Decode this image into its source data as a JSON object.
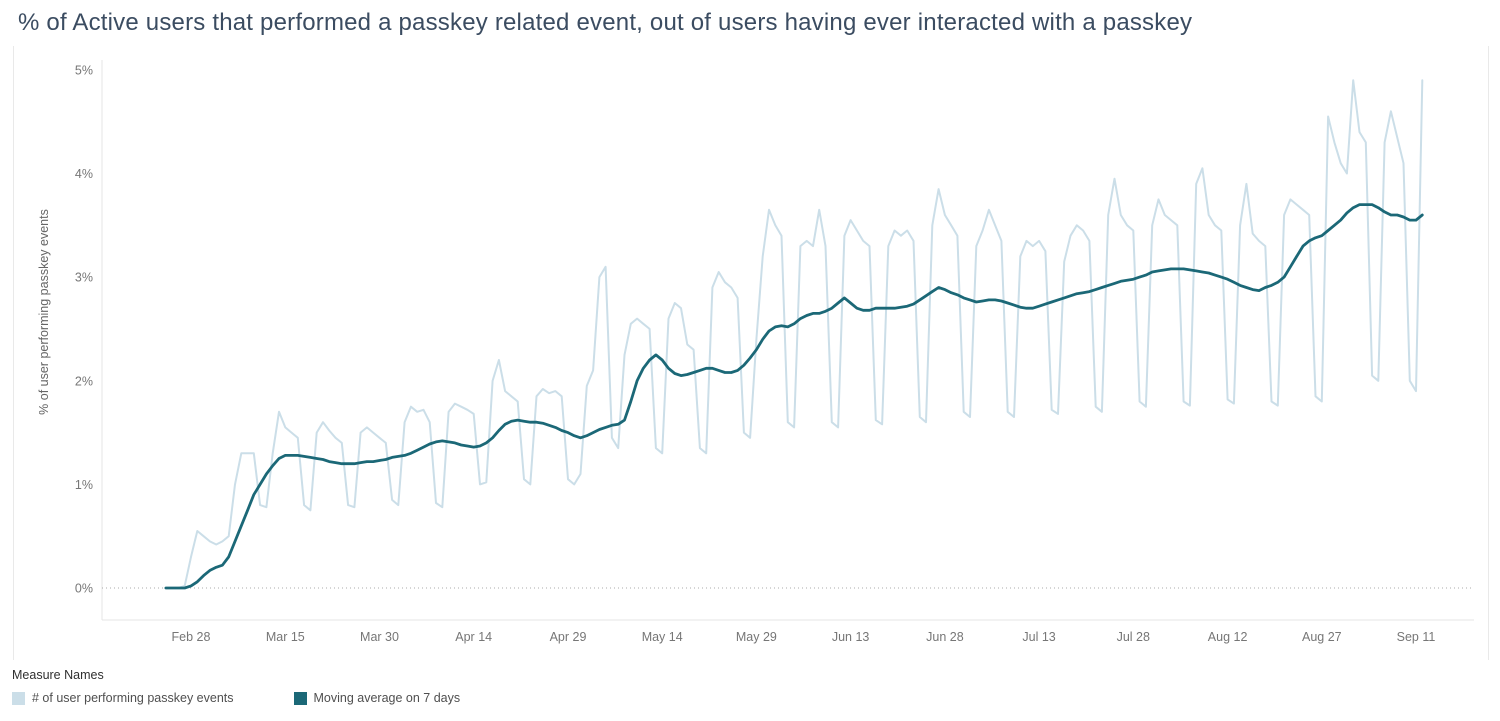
{
  "legend": {
    "title": "Measure Names"
  },
  "colors": {
    "daily_series": "#cbdee8",
    "moving_average": "#1b6877",
    "title_text": "#3b4c61",
    "axis_text": "#767676",
    "zero_line": "#ababab"
  },
  "chart_data": {
    "type": "line",
    "title": "% of Active users that performed a passkey related event, out of users having ever interacted with a passkey",
    "xlabel": "",
    "ylabel": "% of user performing passkey events",
    "ylim": [
      0,
      5
    ],
    "y_ticks": [
      "0%",
      "1%",
      "2%",
      "3%",
      "4%",
      "5%"
    ],
    "grid": "dotted-zero-line-only",
    "legend_position": "bottom-left",
    "x_tick_labels": [
      "Feb 28",
      "Mar 15",
      "Mar 30",
      "Apr 14",
      "Apr 29",
      "May 14",
      "May 29",
      "Jun 13",
      "Jun 28",
      "Jul 13",
      "Jul 28",
      "Aug 12",
      "Aug 27",
      "Sep 11"
    ],
    "x_tick_indices": [
      4,
      19,
      34,
      49,
      64,
      79,
      94,
      109,
      124,
      139,
      154,
      169,
      184,
      199
    ],
    "dates": [
      "Feb 24",
      "Feb 25",
      "Feb 26",
      "Feb 27",
      "Feb 28",
      "Mar 1",
      "Mar 2",
      "Mar 3",
      "Mar 4",
      "Mar 5",
      "Mar 6",
      "Mar 7",
      "Mar 8",
      "Mar 9",
      "Mar 10",
      "Mar 11",
      "Mar 12",
      "Mar 13",
      "Mar 14",
      "Mar 15",
      "Mar 16",
      "Mar 17",
      "Mar 18",
      "Mar 19",
      "Mar 20",
      "Mar 21",
      "Mar 22",
      "Mar 23",
      "Mar 24",
      "Mar 25",
      "Mar 26",
      "Mar 27",
      "Mar 28",
      "Mar 29",
      "Mar 30",
      "Mar 31",
      "Apr 1",
      "Apr 2",
      "Apr 3",
      "Apr 4",
      "Apr 5",
      "Apr 6",
      "Apr 7",
      "Apr 8",
      "Apr 9",
      "Apr 10",
      "Apr 11",
      "Apr 12",
      "Apr 13",
      "Apr 14",
      "Apr 15",
      "Apr 16",
      "Apr 17",
      "Apr 18",
      "Apr 19",
      "Apr 20",
      "Apr 21",
      "Apr 22",
      "Apr 23",
      "Apr 24",
      "Apr 25",
      "Apr 26",
      "Apr 27",
      "Apr 28",
      "Apr 29",
      "Apr 30",
      "May 1",
      "May 2",
      "May 3",
      "May 4",
      "May 5",
      "May 6",
      "May 7",
      "May 8",
      "May 9",
      "May 10",
      "May 11",
      "May 12",
      "May 13",
      "May 14",
      "May 15",
      "May 16",
      "May 17",
      "May 18",
      "May 19",
      "May 20",
      "May 21",
      "May 22",
      "May 23",
      "May 24",
      "May 25",
      "May 26",
      "May 27",
      "May 28",
      "May 29",
      "May 30",
      "May 31",
      "Jun 1",
      "Jun 2",
      "Jun 3",
      "Jun 4",
      "Jun 5",
      "Jun 6",
      "Jun 7",
      "Jun 8",
      "Jun 9",
      "Jun 10",
      "Jun 11",
      "Jun 12",
      "Jun 13",
      "Jun 14",
      "Jun 15",
      "Jun 16",
      "Jun 17",
      "Jun 18",
      "Jun 19",
      "Jun 20",
      "Jun 21",
      "Jun 22",
      "Jun 23",
      "Jun 24",
      "Jun 25",
      "Jun 26",
      "Jun 27",
      "Jun 28",
      "Jun 29",
      "Jun 30",
      "Jul 1",
      "Jul 2",
      "Jul 3",
      "Jul 4",
      "Jul 5",
      "Jul 6",
      "Jul 7",
      "Jul 8",
      "Jul 9",
      "Jul 10",
      "Jul 11",
      "Jul 12",
      "Jul 13",
      "Jul 14",
      "Jul 15",
      "Jul 16",
      "Jul 17",
      "Jul 18",
      "Jul 19",
      "Jul 20",
      "Jul 21",
      "Jul 22",
      "Jul 23",
      "Jul 24",
      "Jul 25",
      "Jul 26",
      "Jul 27",
      "Jul 28",
      "Jul 29",
      "Jul 30",
      "Jul 31",
      "Aug 1",
      "Aug 2",
      "Aug 3",
      "Aug 4",
      "Aug 5",
      "Aug 6",
      "Aug 7",
      "Aug 8",
      "Aug 9",
      "Aug 10",
      "Aug 11",
      "Aug 12",
      "Aug 13",
      "Aug 14",
      "Aug 15",
      "Aug 16",
      "Aug 17",
      "Aug 18",
      "Aug 19",
      "Aug 20",
      "Aug 21",
      "Aug 22",
      "Aug 23",
      "Aug 24",
      "Aug 25",
      "Aug 26",
      "Aug 27",
      "Aug 28",
      "Aug 29",
      "Aug 30",
      "Aug 31",
      "Sep 1",
      "Sep 2",
      "Sep 3",
      "Sep 4",
      "Sep 5",
      "Sep 6",
      "Sep 7",
      "Sep 8",
      "Sep 9",
      "Sep 10",
      "Sep 11",
      "Sep 12"
    ],
    "series": [
      {
        "name": "# of user performing passkey events",
        "color": "#cbdee8",
        "values": [
          0,
          0,
          0,
          0.02,
          0.3,
          0.55,
          0.5,
          0.45,
          0.42,
          0.45,
          0.5,
          1.0,
          1.3,
          1.3,
          1.3,
          0.8,
          0.78,
          1.3,
          1.7,
          1.55,
          1.5,
          1.45,
          0.8,
          0.75,
          1.5,
          1.6,
          1.52,
          1.45,
          1.4,
          0.8,
          0.78,
          1.5,
          1.55,
          1.5,
          1.45,
          1.4,
          0.85,
          0.8,
          1.6,
          1.75,
          1.7,
          1.72,
          1.6,
          0.82,
          0.78,
          1.7,
          1.78,
          1.75,
          1.72,
          1.68,
          1.0,
          1.02,
          2.0,
          2.2,
          1.9,
          1.85,
          1.8,
          1.05,
          1.0,
          1.85,
          1.92,
          1.88,
          1.9,
          1.85,
          1.05,
          1.0,
          1.1,
          1.95,
          2.1,
          3.0,
          3.1,
          1.45,
          1.35,
          2.25,
          2.55,
          2.6,
          2.55,
          2.5,
          1.35,
          1.3,
          2.6,
          2.75,
          2.7,
          2.35,
          2.3,
          1.35,
          1.3,
          2.9,
          3.05,
          2.95,
          2.9,
          2.8,
          1.5,
          1.45,
          2.4,
          3.2,
          3.65,
          3.5,
          3.4,
          1.6,
          1.55,
          3.3,
          3.35,
          3.3,
          3.65,
          3.3,
          1.6,
          1.55,
          3.4,
          3.55,
          3.45,
          3.35,
          3.3,
          1.62,
          1.58,
          3.3,
          3.45,
          3.4,
          3.45,
          3.35,
          1.65,
          1.6,
          3.5,
          3.85,
          3.6,
          3.5,
          3.4,
          1.7,
          1.65,
          3.3,
          3.45,
          3.65,
          3.5,
          3.35,
          1.7,
          1.65,
          3.2,
          3.35,
          3.3,
          3.35,
          3.25,
          1.72,
          1.68,
          3.15,
          3.4,
          3.5,
          3.45,
          3.35,
          1.75,
          1.7,
          3.6,
          3.95,
          3.6,
          3.5,
          3.45,
          1.8,
          1.75,
          3.5,
          3.75,
          3.6,
          3.55,
          3.5,
          1.8,
          1.76,
          3.9,
          4.05,
          3.6,
          3.5,
          3.45,
          1.82,
          1.78,
          3.5,
          3.9,
          3.42,
          3.35,
          3.3,
          1.8,
          1.76,
          3.6,
          3.75,
          3.7,
          3.65,
          3.6,
          1.85,
          1.8,
          4.55,
          4.3,
          4.1,
          4.0,
          4.9,
          4.4,
          4.3,
          2.05,
          2.0,
          4.3,
          4.6,
          4.35,
          4.1,
          2.0,
          1.9,
          4.9
        ]
      },
      {
        "name": "Moving average on 7 days",
        "color": "#1b6877",
        "values": [
          0,
          0,
          0,
          0,
          0.02,
          0.06,
          0.12,
          0.17,
          0.2,
          0.22,
          0.3,
          0.45,
          0.6,
          0.75,
          0.9,
          1.0,
          1.1,
          1.18,
          1.25,
          1.28,
          1.28,
          1.28,
          1.27,
          1.26,
          1.25,
          1.24,
          1.22,
          1.21,
          1.2,
          1.2,
          1.2,
          1.21,
          1.22,
          1.22,
          1.23,
          1.24,
          1.26,
          1.27,
          1.28,
          1.3,
          1.33,
          1.36,
          1.39,
          1.41,
          1.42,
          1.41,
          1.4,
          1.38,
          1.37,
          1.36,
          1.37,
          1.4,
          1.45,
          1.52,
          1.58,
          1.61,
          1.62,
          1.61,
          1.6,
          1.6,
          1.59,
          1.57,
          1.55,
          1.52,
          1.5,
          1.47,
          1.45,
          1.47,
          1.5,
          1.53,
          1.55,
          1.57,
          1.58,
          1.62,
          1.8,
          2.0,
          2.12,
          2.2,
          2.25,
          2.2,
          2.12,
          2.07,
          2.05,
          2.06,
          2.08,
          2.1,
          2.12,
          2.12,
          2.1,
          2.08,
          2.08,
          2.1,
          2.15,
          2.22,
          2.3,
          2.4,
          2.48,
          2.52,
          2.53,
          2.52,
          2.55,
          2.6,
          2.63,
          2.65,
          2.65,
          2.67,
          2.7,
          2.75,
          2.8,
          2.75,
          2.7,
          2.68,
          2.68,
          2.7,
          2.7,
          2.7,
          2.7,
          2.71,
          2.72,
          2.74,
          2.78,
          2.82,
          2.86,
          2.9,
          2.88,
          2.85,
          2.83,
          2.8,
          2.78,
          2.76,
          2.77,
          2.78,
          2.78,
          2.77,
          2.75,
          2.73,
          2.71,
          2.7,
          2.7,
          2.72,
          2.74,
          2.76,
          2.78,
          2.8,
          2.82,
          2.84,
          2.85,
          2.86,
          2.88,
          2.9,
          2.92,
          2.94,
          2.96,
          2.97,
          2.98,
          3.0,
          3.02,
          3.05,
          3.06,
          3.07,
          3.08,
          3.08,
          3.08,
          3.07,
          3.06,
          3.05,
          3.04,
          3.02,
          3.0,
          2.98,
          2.95,
          2.92,
          2.9,
          2.88,
          2.87,
          2.9,
          2.92,
          2.95,
          3.0,
          3.1,
          3.2,
          3.3,
          3.35,
          3.38,
          3.4,
          3.45,
          3.5,
          3.55,
          3.62,
          3.67,
          3.7,
          3.7,
          3.7,
          3.67,
          3.63,
          3.6,
          3.6,
          3.58,
          3.55,
          3.55,
          3.6
        ]
      }
    ]
  }
}
